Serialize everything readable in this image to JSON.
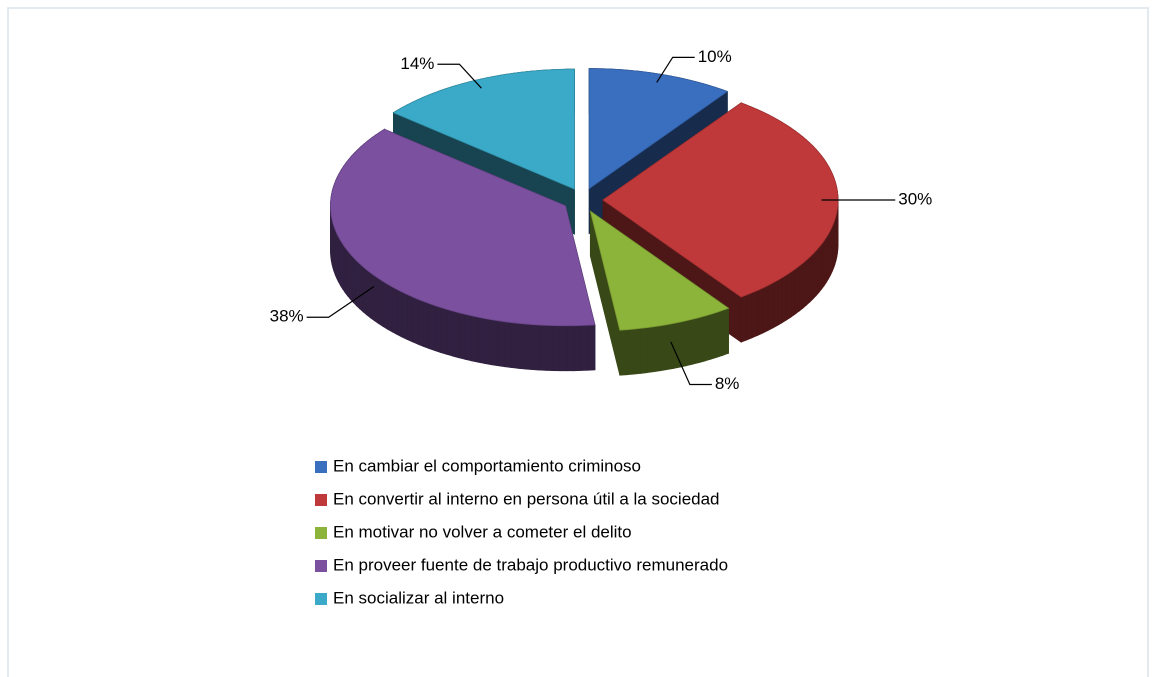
{
  "chart_data": {
    "type": "pie",
    "categories": [
      "En cambiar el comportamiento criminoso",
      "En convertir al interno en persona útil a la sociedad",
      "En motivar no volver a cometer el delito",
      "En proveer fuente de trabajo productivo remunerado",
      "En socializar al interno"
    ],
    "values": [
      10,
      30,
      8,
      38,
      14
    ],
    "value_labels": [
      "10%",
      "30%",
      "8%",
      "38%",
      "14%"
    ],
    "colors": [
      "#3a6fc0",
      "#c0393a",
      "#8db43a",
      "#7a509f",
      "#3aaac8"
    ],
    "legend": "bottom"
  }
}
